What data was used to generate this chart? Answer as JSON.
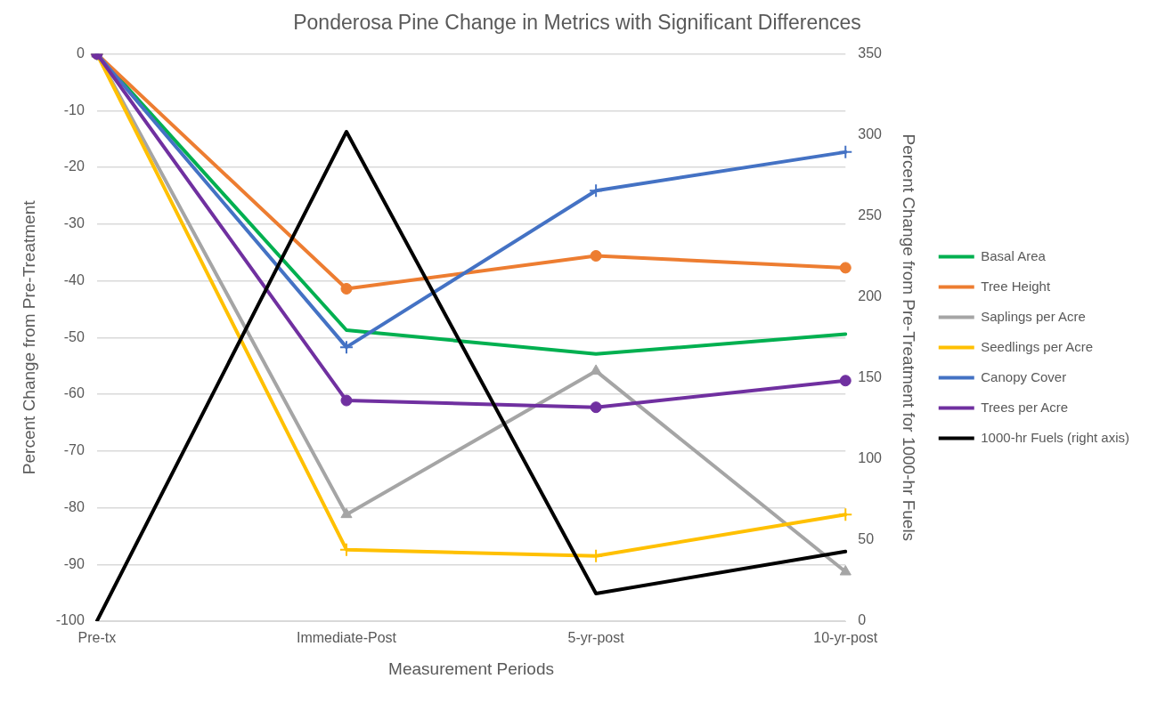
{
  "chart_data": {
    "type": "line",
    "title": "Ponderosa Pine Change in Metrics with Significant Differences",
    "xlabel": "Measurement Periods",
    "ylabel": "Percent Change from Pre-Treatment",
    "y2label": "Percent Change from Pre-Treatment for 1000-hr Fuels",
    "categories": [
      "Pre-tx",
      "Immediate-Post",
      "5-yr-post",
      "10-yr-post"
    ],
    "series": [
      {
        "name": "Basal Area",
        "color": "#00b050",
        "marker": "none",
        "values": [
          0,
          -48.7,
          -52.9,
          -49.4
        ]
      },
      {
        "name": "Tree Height",
        "color": "#ed7d31",
        "marker": "circle",
        "values": [
          0,
          -41.4,
          -35.6,
          -37.7
        ]
      },
      {
        "name": "Saplings per Acre",
        "color": "#a5a5a5",
        "marker": "triangle",
        "values": [
          0,
          -81.2,
          -55.9,
          -91.3
        ]
      },
      {
        "name": "Seedlings per Acre",
        "color": "#ffc000",
        "marker": "cross",
        "values": [
          0,
          -87.4,
          -88.5,
          -81.2
        ]
      },
      {
        "name": "Canopy Cover",
        "color": "#4472c4",
        "marker": "cross",
        "values": [
          0,
          -51.7,
          -24.1,
          -17.3
        ]
      },
      {
        "name": "Trees per Acre",
        "color": "#7030a0",
        "marker": "circle",
        "values": [
          0,
          -61.1,
          -62.3,
          -57.6
        ]
      },
      {
        "name": "1000-hr Fuels (right axis)",
        "color": "#000000",
        "marker": "none",
        "axis": "y2",
        "values": [
          0,
          302,
          17,
          43
        ]
      }
    ],
    "ylim": [
      -100,
      0
    ],
    "yticks": [
      -100,
      -90,
      -80,
      -70,
      -60,
      -50,
      -40,
      -30,
      -20,
      -10,
      0
    ],
    "y2lim": [
      0,
      350
    ],
    "y2ticks": [
      0,
      50,
      100,
      150,
      200,
      250,
      300,
      350
    ],
    "grid": "y",
    "legend": "right",
    "line_style": "solid"
  }
}
